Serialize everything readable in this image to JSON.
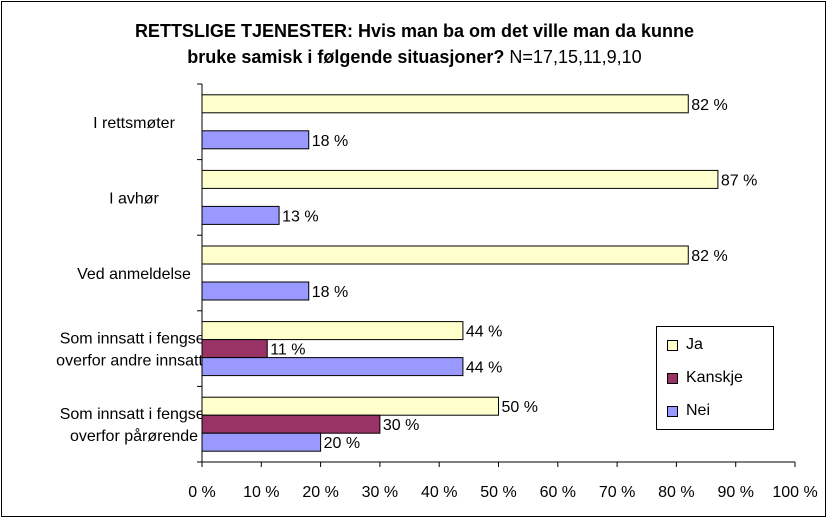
{
  "chart_data": {
    "type": "bar",
    "orientation": "horizontal",
    "title": "RETTSLIGE TJENESTER: Hvis man ba om det ville man da kunne bruke samisk i følgende situasjoner?",
    "title_line1": "RETTSLIGE TJENESTER: Hvis man ba om det ville man da kunne",
    "title_line2": "bruke samisk i følgende situasjoner?",
    "n_note": "N=17,15,11,9,10",
    "categories": [
      [
        "I rettsmøter"
      ],
      [
        "I avhør"
      ],
      [
        "Ved anmeldelse"
      ],
      [
        "Som innsatt i fengsel",
        "overfor andre innsatte"
      ],
      [
        "Som innsatt i fengsel",
        "overfor pårørende"
      ]
    ],
    "series": [
      {
        "name": "Ja",
        "values": [
          82,
          87,
          82,
          44,
          50
        ],
        "labels": [
          "82 %",
          "87 %",
          "82 %",
          "44 %",
          "50 %"
        ]
      },
      {
        "name": "Kanskje",
        "values": [
          0,
          0,
          0,
          11,
          30
        ],
        "labels": [
          "",
          "",
          "",
          "11 %",
          "30 %"
        ]
      },
      {
        "name": "Nei",
        "values": [
          18,
          13,
          18,
          44,
          20
        ],
        "labels": [
          "18 %",
          "13 %",
          "18 %",
          "44 %",
          "20 %"
        ]
      }
    ],
    "colors": {
      "Ja": "#ffffcc",
      "Kanskje": "#993366",
      "Nei": "#9999ff"
    },
    "xlim": [
      0,
      100
    ],
    "xticks": [
      0,
      10,
      20,
      30,
      40,
      50,
      60,
      70,
      80,
      90,
      100
    ],
    "xtick_labels": [
      "0 %",
      "10 %",
      "20 %",
      "30 %",
      "40 %",
      "50 %",
      "60 %",
      "70 %",
      "80 %",
      "90 %",
      "100 %"
    ],
    "grid": false,
    "legend_position": "right"
  }
}
